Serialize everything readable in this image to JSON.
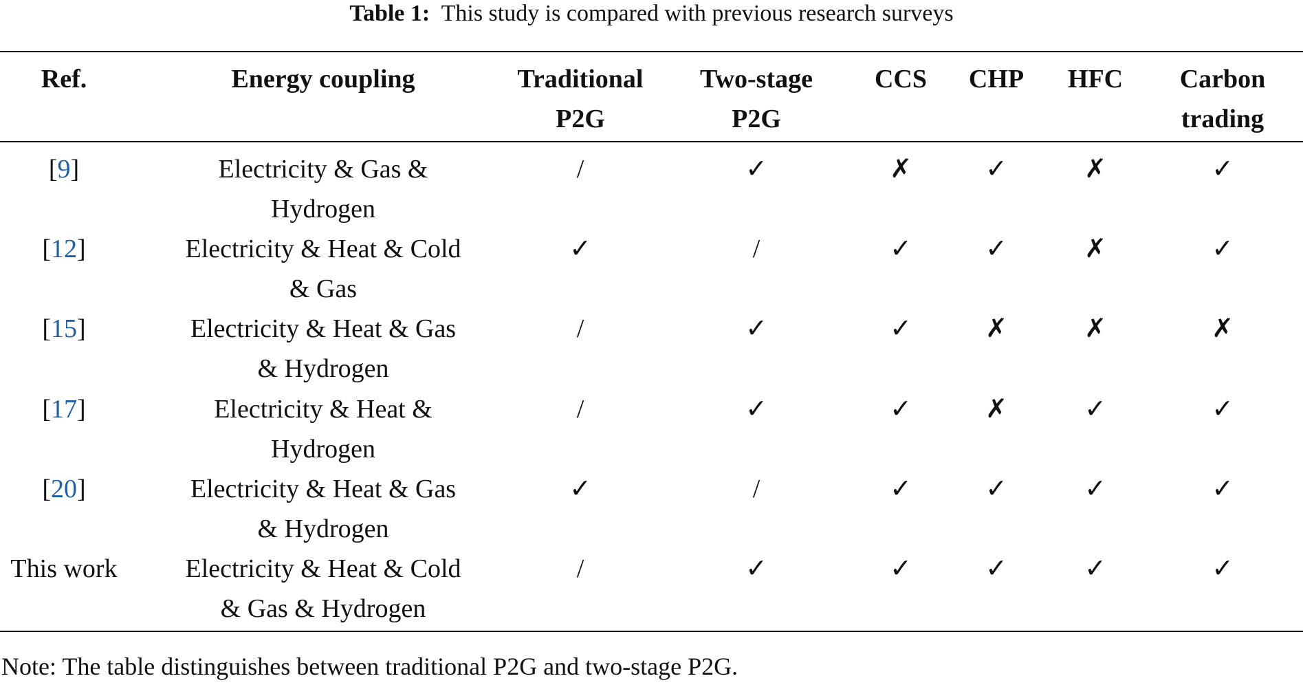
{
  "caption": {
    "label": "Table 1:",
    "text": "This study is compared with previous research surveys"
  },
  "table": {
    "headers": [
      [
        "Ref."
      ],
      [
        "Energy coupling"
      ],
      [
        "Traditional",
        "P2G"
      ],
      [
        "Two-stage",
        "P2G"
      ],
      [
        "CCS"
      ],
      [
        "CHP"
      ],
      [
        "HFC"
      ],
      [
        "Carbon",
        "trading"
      ]
    ],
    "rows": [
      {
        "ref": [
          "[",
          "9",
          "]"
        ],
        "coupling": [
          "Electricity & Gas &",
          "Hydrogen"
        ],
        "cells": [
          "/",
          "✓",
          "✗",
          "✓",
          "✗",
          "✓"
        ]
      },
      {
        "ref": [
          "[",
          "12",
          "]"
        ],
        "coupling": [
          "Electricity & Heat & Cold",
          "& Gas"
        ],
        "cells": [
          "✓",
          "/",
          "✓",
          "✓",
          "✗",
          "✓"
        ]
      },
      {
        "ref": [
          "[",
          "15",
          "]"
        ],
        "coupling": [
          "Electricity & Heat & Gas",
          "& Hydrogen"
        ],
        "cells": [
          "/",
          "✓",
          "✓",
          "✗",
          "✗",
          "✗"
        ]
      },
      {
        "ref": [
          "[",
          "17",
          "]"
        ],
        "coupling": [
          "Electricity & Heat &",
          "Hydrogen"
        ],
        "cells": [
          "/",
          "✓",
          "✓",
          "✗",
          "✓",
          "✓"
        ]
      },
      {
        "ref": [
          "[",
          "20",
          "]"
        ],
        "coupling": [
          "Electricity & Heat & Gas",
          "& Hydrogen"
        ],
        "cells": [
          "✓",
          "/",
          "✓",
          "✓",
          "✓",
          "✓"
        ]
      },
      {
        "ref": [
          "This work"
        ],
        "coupling": [
          "Electricity & Heat & Cold",
          "& Gas & Hydrogen"
        ],
        "cells": [
          "/",
          "✓",
          "✓",
          "✓",
          "✓",
          "✓"
        ]
      }
    ],
    "note": "Note: The table distinguishes between traditional P2G and two-stage P2G."
  }
}
